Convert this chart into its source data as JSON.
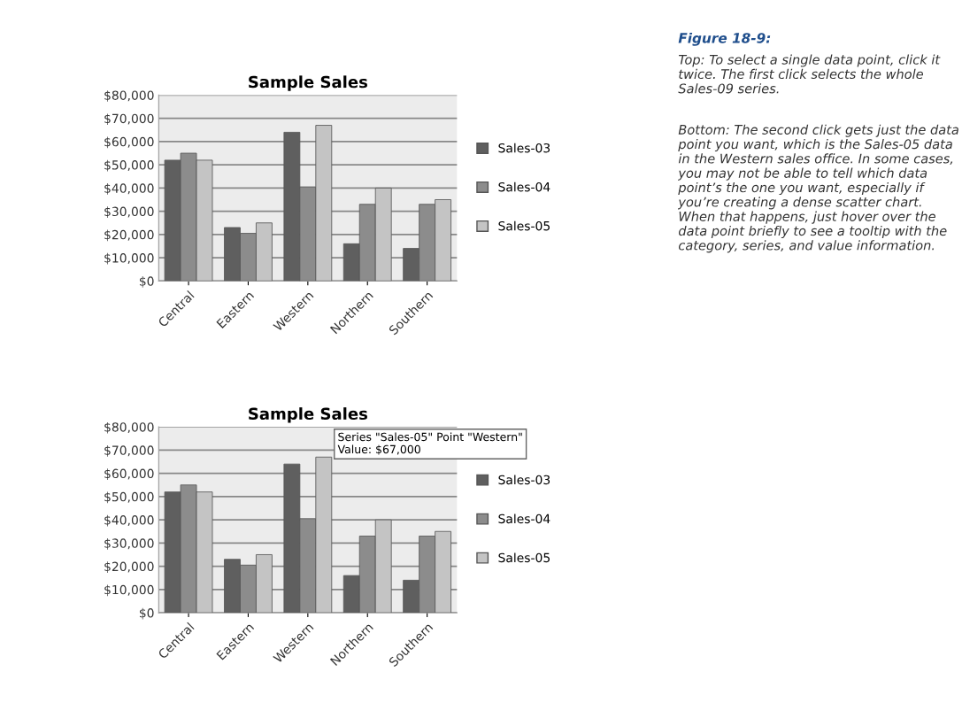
{
  "chart_data": [
    {
      "type": "bar",
      "title": "Sample Sales",
      "categories": [
        "Central",
        "Eastern",
        "Western",
        "Northern",
        "Southern"
      ],
      "series": [
        {
          "name": "Sales-03",
          "color": "#5f5f5f",
          "values": [
            52000,
            23000,
            64000,
            16000,
            14000
          ]
        },
        {
          "name": "Sales-04",
          "color": "#8c8c8c",
          "values": [
            55000,
            20500,
            40500,
            33000,
            33000
          ]
        },
        {
          "name": "Sales-05",
          "color": "#c4c4c4",
          "values": [
            52000,
            25000,
            67000,
            40000,
            35000
          ]
        }
      ],
      "ylim": [
        0,
        80000
      ],
      "yticks": [
        {
          "value": 0,
          "label": "$0"
        },
        {
          "value": 10000,
          "label": "$10,000"
        },
        {
          "value": 20000,
          "label": "$20,000"
        },
        {
          "value": 30000,
          "label": "$30,000"
        },
        {
          "value": 40000,
          "label": "$40,000"
        },
        {
          "value": 50000,
          "label": "$50,000"
        },
        {
          "value": 60000,
          "label": "$60,000"
        },
        {
          "value": 70000,
          "label": "$70,000"
        },
        {
          "value": 80000,
          "label": "$80,000"
        }
      ],
      "grid": "y",
      "legend": "right",
      "annotations": [
        "Figure 18-9:",
        "Top: To select a single data point, click it twice. The first click selects the whole Sales-09 series.",
        "Bottom: The second click gets just the data point you want, which is the Sales-05 data in the Western sales office. In some cases, you may not be able to tell which data point’s the one you want, especially if you’re creating a dense scatter chart. When that happens, just hover over the data point briefly to see a tooltip with the category, series, and value information."
      ]
    },
    {
      "type": "bar",
      "title": "Sample Sales",
      "categories": [
        "Central",
        "Eastern",
        "Western",
        "Northern",
        "Southern"
      ],
      "series": [
        {
          "name": "Sales-03",
          "color": "#5f5f5f",
          "values": [
            52000,
            23000,
            64000,
            16000,
            14000
          ]
        },
        {
          "name": "Sales-04",
          "color": "#8c8c8c",
          "values": [
            55000,
            20500,
            40500,
            33000,
            33000
          ]
        },
        {
          "name": "Sales-05",
          "color": "#c4c4c4",
          "values": [
            52000,
            25000,
            67000,
            40000,
            35000
          ]
        }
      ],
      "ylim": [
        0,
        80000
      ],
      "yticks": [
        {
          "value": 0,
          "label": "$0"
        },
        {
          "value": 10000,
          "label": "$10,000"
        },
        {
          "value": 20000,
          "label": "$20,000"
        },
        {
          "value": 30000,
          "label": "$30,000"
        },
        {
          "value": 40000,
          "label": "$40,000"
        },
        {
          "value": 50000,
          "label": "$50,000"
        },
        {
          "value": 60000,
          "label": "$60,000"
        },
        {
          "value": 70000,
          "label": "$70,000"
        },
        {
          "value": 80000,
          "label": "$80,000"
        }
      ],
      "grid": "y",
      "legend": "right",
      "annotations": [
        "Series \"Sales-05\" Point \"Western\"\nValue: $67,000"
      ]
    }
  ]
}
